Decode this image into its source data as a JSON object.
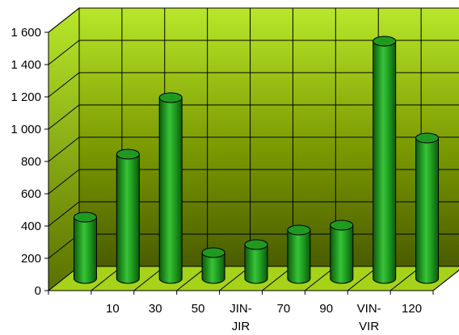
{
  "chart_data": {
    "type": "bar",
    "style": "3d-cylinder",
    "categories": [
      "",
      "10",
      "30",
      "50",
      "JIN-JIR",
      "70",
      "90",
      "VIN-VIR",
      "120"
    ],
    "category_lines": [
      [
        ""
      ],
      [
        "10"
      ],
      [
        "30"
      ],
      [
        "50"
      ],
      [
        "JIN-",
        "JIR"
      ],
      [
        "70"
      ],
      [
        "90"
      ],
      [
        "VIN-",
        "VIR"
      ],
      [
        "120"
      ]
    ],
    "values": [
      380,
      770,
      1120,
      160,
      210,
      300,
      330,
      1470,
      870
    ],
    "ylim": [
      0,
      1600
    ],
    "yticks": [
      0,
      200,
      400,
      600,
      800,
      1000,
      1200,
      1400,
      1600
    ],
    "ytick_labels": [
      "0",
      "200",
      "400",
      "600",
      "800",
      "1 000",
      "1 200",
      "1 400",
      "1 600"
    ],
    "grid": true,
    "legend": "none",
    "colors": {
      "wall_top": "#b8e82a",
      "wall_bottom": "#4a5c00",
      "floor": "#a6d21a",
      "bar_dark": "#0b5a0b",
      "bar_mid": "#1f9a1f",
      "bar_light": "#37c437",
      "gridline": "#000000"
    }
  }
}
